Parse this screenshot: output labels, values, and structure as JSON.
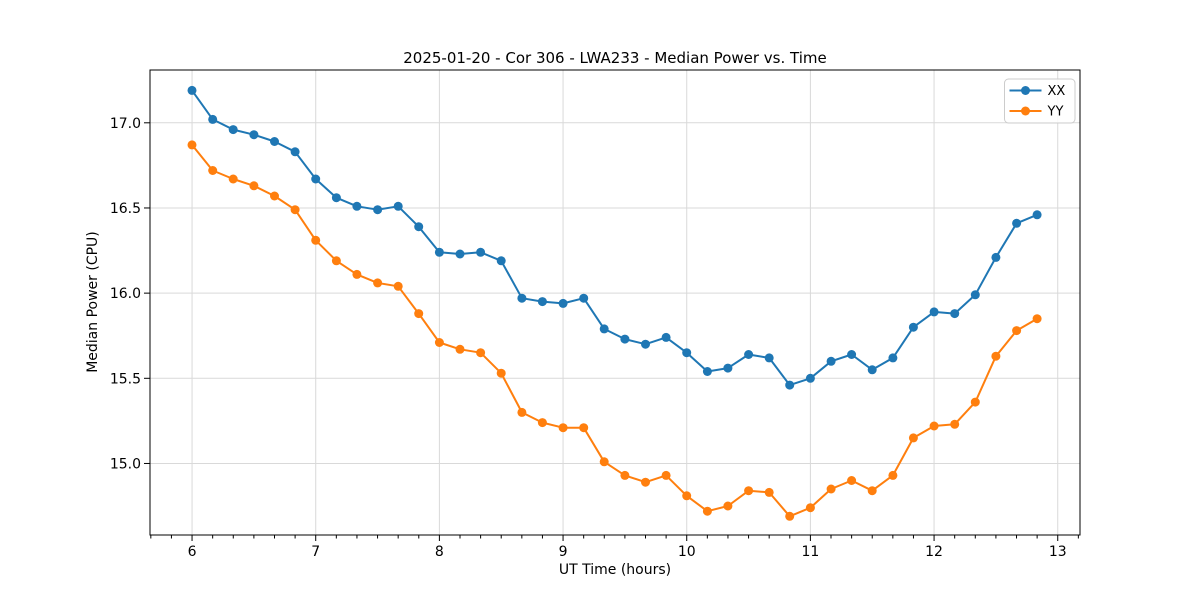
{
  "chart_data": {
    "type": "line",
    "title": "2025-01-20 - Cor 306 - LWA233 - Median Power vs. Time",
    "xlabel": "UT Time (hours)",
    "ylabel": "Median Power (CPU)",
    "x": [
      6.0,
      6.167,
      6.333,
      6.5,
      6.667,
      6.833,
      7.0,
      7.167,
      7.333,
      7.5,
      7.667,
      7.833,
      8.0,
      8.167,
      8.333,
      8.5,
      8.667,
      8.833,
      9.0,
      9.167,
      9.333,
      9.5,
      9.667,
      9.833,
      10.0,
      10.167,
      10.333,
      10.5,
      10.667,
      10.833,
      11.0,
      11.167,
      11.333,
      11.5,
      11.667,
      11.833,
      12.0,
      12.167,
      12.333,
      12.5,
      12.667,
      12.833
    ],
    "series": [
      {
        "name": "XX",
        "color": "#1f77b4",
        "values": [
          17.19,
          17.02,
          16.96,
          16.93,
          16.89,
          16.83,
          16.67,
          16.56,
          16.51,
          16.49,
          16.51,
          16.39,
          16.24,
          16.23,
          16.24,
          16.19,
          15.97,
          15.95,
          15.94,
          15.97,
          15.79,
          15.73,
          15.7,
          15.74,
          15.65,
          15.54,
          15.56,
          15.64,
          15.62,
          15.46,
          15.5,
          15.6,
          15.64,
          15.55,
          15.62,
          15.8,
          15.89,
          15.88,
          15.99,
          16.21,
          16.41,
          16.46
        ]
      },
      {
        "name": "YY",
        "color": "#ff7f0e",
        "values": [
          16.87,
          16.72,
          16.67,
          16.63,
          16.57,
          16.49,
          16.31,
          16.19,
          16.11,
          16.06,
          16.04,
          15.88,
          15.71,
          15.67,
          15.65,
          15.53,
          15.3,
          15.24,
          15.21,
          15.21,
          15.01,
          14.93,
          14.89,
          14.93,
          14.81,
          14.72,
          14.75,
          14.84,
          14.83,
          14.69,
          14.74,
          14.85,
          14.9,
          14.84,
          14.93,
          15.15,
          15.22,
          15.23,
          15.36,
          15.63,
          15.78,
          15.85
        ]
      }
    ],
    "xlim": [
      5.66,
      13.18
    ],
    "ylim": [
      14.58,
      17.31
    ],
    "xticks": {
      "values": [
        6,
        7,
        8,
        9,
        10,
        11,
        12,
        13
      ],
      "labels": [
        "6",
        "7",
        "8",
        "9",
        "10",
        "11",
        "12",
        "13"
      ]
    },
    "yticks": {
      "values": [
        15.0,
        15.5,
        16.0,
        16.5,
        17.0
      ],
      "labels": [
        "15.0",
        "15.5",
        "16.0",
        "16.5",
        "17.0"
      ]
    },
    "x_minor_divisions": 6,
    "grid": true,
    "legend": {
      "position": "upper right",
      "entries": [
        "XX",
        "YY"
      ]
    },
    "colors": {
      "grid": "#d9d9d9",
      "spine": "#000000",
      "tick": "#000000",
      "background": "#ffffff",
      "legend_border": "#cccccc"
    }
  }
}
